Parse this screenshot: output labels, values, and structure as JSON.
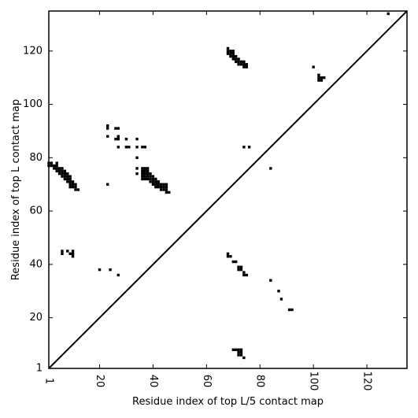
{
  "chart_data": {
    "type": "scatter",
    "xlabel": "Residue index of top L/5 contact map",
    "ylabel": "Residue index of top L contact map",
    "xlim": [
      1,
      135
    ],
    "ylim": [
      1,
      135
    ],
    "xticks": [
      1,
      20,
      40,
      60,
      80,
      100,
      120
    ],
    "yticks": [
      1,
      20,
      40,
      60,
      80,
      100,
      120
    ],
    "diagonal": true,
    "marker": "square",
    "color": "#000000",
    "series": [
      {
        "values": [
          [
            128,
            134
          ],
          [
            68,
            121
          ],
          [
            68,
            120
          ],
          [
            69,
            120
          ],
          [
            70,
            120
          ],
          [
            68,
            119
          ],
          [
            69,
            119
          ],
          [
            70,
            119
          ],
          [
            69,
            118
          ],
          [
            70,
            118
          ],
          [
            71,
            118
          ],
          [
            70,
            117
          ],
          [
            71,
            117
          ],
          [
            72,
            117
          ],
          [
            71,
            116
          ],
          [
            72,
            116
          ],
          [
            73,
            116
          ],
          [
            74,
            116
          ],
          [
            72,
            115
          ],
          [
            73,
            115
          ],
          [
            74,
            115
          ],
          [
            75,
            115
          ],
          [
            74,
            114
          ],
          [
            75,
            114
          ],
          [
            100,
            114
          ],
          [
            102,
            111
          ],
          [
            102,
            110
          ],
          [
            103,
            110
          ],
          [
            104,
            110
          ],
          [
            102,
            109
          ],
          [
            103,
            109
          ],
          [
            23,
            92
          ],
          [
            23,
            91
          ],
          [
            26,
            91
          ],
          [
            27,
            91
          ],
          [
            23,
            88
          ],
          [
            27,
            88
          ],
          [
            26,
            87
          ],
          [
            27,
            87
          ],
          [
            30,
            87
          ],
          [
            34,
            87
          ],
          [
            27,
            84
          ],
          [
            30,
            84
          ],
          [
            31,
            84
          ],
          [
            34,
            84
          ],
          [
            36,
            84
          ],
          [
            37,
            84
          ],
          [
            74,
            84
          ],
          [
            76,
            84
          ],
          [
            34,
            80
          ],
          [
            84,
            76
          ],
          [
            1,
            78
          ],
          [
            2,
            78
          ],
          [
            4,
            78
          ],
          [
            1,
            77
          ],
          [
            2,
            77
          ],
          [
            3,
            77
          ],
          [
            4,
            77
          ],
          [
            3,
            76
          ],
          [
            4,
            76
          ],
          [
            5,
            76
          ],
          [
            6,
            76
          ],
          [
            4,
            75
          ],
          [
            5,
            75
          ],
          [
            6,
            75
          ],
          [
            7,
            75
          ],
          [
            5,
            74
          ],
          [
            6,
            74
          ],
          [
            7,
            74
          ],
          [
            8,
            74
          ],
          [
            6,
            73
          ],
          [
            7,
            73
          ],
          [
            8,
            73
          ],
          [
            9,
            73
          ],
          [
            7,
            72
          ],
          [
            8,
            72
          ],
          [
            9,
            72
          ],
          [
            8,
            71
          ],
          [
            9,
            71
          ],
          [
            10,
            71
          ],
          [
            9,
            70
          ],
          [
            10,
            70
          ],
          [
            11,
            70
          ],
          [
            9,
            69
          ],
          [
            10,
            69
          ],
          [
            11,
            69
          ],
          [
            11,
            68
          ],
          [
            12,
            68
          ],
          [
            34,
            76
          ],
          [
            36,
            76
          ],
          [
            37,
            76
          ],
          [
            38,
            76
          ],
          [
            34,
            74
          ],
          [
            36,
            74
          ],
          [
            37,
            74
          ],
          [
            38,
            74
          ],
          [
            39,
            74
          ],
          [
            36,
            75
          ],
          [
            37,
            75
          ],
          [
            38,
            75
          ],
          [
            36,
            73
          ],
          [
            37,
            73
          ],
          [
            38,
            73
          ],
          [
            39,
            73
          ],
          [
            40,
            73
          ],
          [
            36,
            72
          ],
          [
            37,
            72
          ],
          [
            38,
            72
          ],
          [
            39,
            72
          ],
          [
            40,
            72
          ],
          [
            41,
            72
          ],
          [
            39,
            71
          ],
          [
            40,
            71
          ],
          [
            41,
            71
          ],
          [
            42,
            71
          ],
          [
            40,
            70
          ],
          [
            41,
            70
          ],
          [
            42,
            70
          ],
          [
            43,
            70
          ],
          [
            44,
            70
          ],
          [
            45,
            70
          ],
          [
            41,
            69
          ],
          [
            42,
            69
          ],
          [
            43,
            69
          ],
          [
            44,
            69
          ],
          [
            45,
            69
          ],
          [
            43,
            68
          ],
          [
            44,
            68
          ],
          [
            45,
            68
          ],
          [
            45,
            67
          ],
          [
            46,
            67
          ],
          [
            23,
            70
          ],
          [
            6,
            45
          ],
          [
            8,
            45
          ],
          [
            10,
            45
          ],
          [
            6,
            44
          ],
          [
            9,
            44
          ],
          [
            10,
            44
          ],
          [
            10,
            43
          ],
          [
            68,
            44
          ],
          [
            68,
            43
          ],
          [
            69,
            43
          ],
          [
            70,
            41
          ],
          [
            71,
            41
          ],
          [
            72,
            39
          ],
          [
            73,
            39
          ],
          [
            72,
            38
          ],
          [
            73,
            38
          ],
          [
            74,
            37
          ],
          [
            74,
            36
          ],
          [
            75,
            36
          ],
          [
            20,
            38
          ],
          [
            24,
            38
          ],
          [
            27,
            36
          ],
          [
            84,
            34
          ],
          [
            87,
            30
          ],
          [
            88,
            27
          ],
          [
            91,
            23
          ],
          [
            92,
            23
          ],
          [
            70,
            8
          ],
          [
            71,
            8
          ],
          [
            72,
            8
          ],
          [
            73,
            8
          ],
          [
            72,
            7
          ],
          [
            73,
            7
          ],
          [
            72,
            6
          ],
          [
            73,
            6
          ],
          [
            74,
            5
          ]
        ]
      }
    ]
  }
}
